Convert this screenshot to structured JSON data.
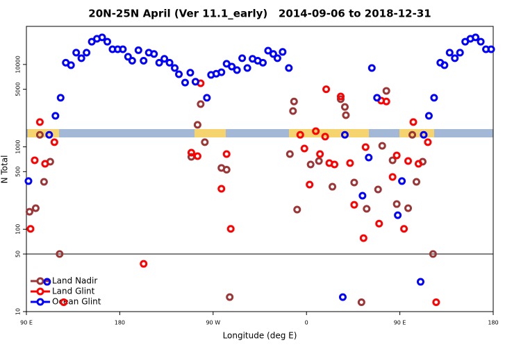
{
  "chart_data": {
    "type": "scatter",
    "log_y": true,
    "title": "20N-25N April (Ver 11.1_early)   2014-09-06 to 2018-12-31",
    "xlabel": "Longitude (deg E)",
    "ylabel": "N Total",
    "xlim": [
      90,
      540
    ],
    "xticks": [
      {
        "value": 90,
        "label": "90 E"
      },
      180,
      {
        "value": 270,
        "label": "90 W"
      },
      {
        "value": 360,
        "label": "0"
      },
      {
        "value": 450,
        "label": "90 E"
      },
      {
        "value": 540,
        "label": "180"
      }
    ],
    "ylim": [
      10,
      29000
    ],
    "yticks": [
      10,
      50,
      100,
      500,
      1000,
      5000,
      10000
    ],
    "hline": 50,
    "legend": "bottom-left",
    "series": [
      {
        "name": "Land Nadir",
        "color": "#9c3535",
        "x": [
          93,
          99,
          103,
          107,
          113,
          122,
          249,
          255,
          258,
          262,
          278,
          283,
          286,
          344,
          347,
          348,
          351,
          364,
          372,
          385,
          393,
          397,
          398,
          406,
          413,
          418,
          429,
          433,
          437,
          443,
          447,
          458,
          462,
          466,
          472,
          482
        ],
        "values": [
          163,
          180,
          1400,
          376,
          660,
          50,
          756,
          1850,
          3300,
          1140,
          555,
          528,
          15,
          817,
          2720,
          3550,
          173,
          611,
          673,
          328,
          3790,
          3050,
          2420,
          369,
          13,
          177,
          304,
          1030,
          4780,
          687,
          202,
          180,
          1400,
          376,
          660,
          50
        ]
      },
      {
        "name": "Land Glint",
        "color": "#ff0000",
        "x": [
          94,
          98,
          103,
          108,
          117,
          126,
          203,
          249,
          255,
          258,
          278,
          283,
          287,
          354,
          358,
          363,
          369,
          373,
          378,
          379,
          382,
          387,
          393,
          402,
          406,
          415,
          417,
          430,
          432,
          437,
          443,
          447,
          454,
          458,
          463,
          468,
          477,
          485
        ],
        "values": [
          101,
          687,
          2000,
          623,
          1140,
          13,
          38,
          850,
          771,
          5910,
          310,
          817,
          101,
          1400,
          955,
          348,
          1550,
          817,
          1330,
          5000,
          635,
          611,
          4090,
          635,
          198,
          78,
          993,
          117,
          3640,
          3550,
          431,
          787,
          101,
          673,
          2000,
          623,
          1140,
          13
        ]
      },
      {
        "name": "Ocean Glint",
        "color": "#0000ff",
        "x": [
          92,
          110,
          112,
          118,
          123,
          128,
          133,
          138,
          143,
          148,
          153,
          158,
          163,
          168,
          173,
          178,
          183,
          188,
          192,
          198,
          203,
          208,
          213,
          218,
          223,
          228,
          233,
          237,
          243,
          248,
          253,
          264,
          268,
          273,
          278,
          283,
          288,
          293,
          298,
          303,
          308,
          313,
          318,
          323,
          328,
          332,
          337,
          343,
          395,
          397,
          414,
          420,
          423,
          428,
          448,
          452,
          470,
          473,
          478,
          483,
          489,
          493,
          498,
          503,
          508,
          513,
          518,
          523,
          528,
          533,
          538
        ],
        "values": [
          384,
          23,
          1400,
          2380,
          3940,
          10500,
          9800,
          13900,
          11900,
          13900,
          18900,
          20500,
          21300,
          18900,
          15300,
          15300,
          15300,
          12400,
          11100,
          14900,
          11100,
          13900,
          13400,
          10500,
          11700,
          10500,
          9060,
          7600,
          6030,
          7940,
          6170,
          3940,
          7470,
          7710,
          8050,
          10200,
          9420,
          8550,
          11900,
          9060,
          11700,
          11100,
          10500,
          14700,
          13400,
          11900,
          14200,
          9060,
          15,
          1400,
          255,
          742,
          9060,
          3940,
          148,
          384,
          23,
          1400,
          2380,
          3940,
          10500,
          9800,
          13900,
          11900,
          13900,
          18900,
          20500,
          21300,
          18900,
          15300,
          15300
        ]
      }
    ]
  }
}
